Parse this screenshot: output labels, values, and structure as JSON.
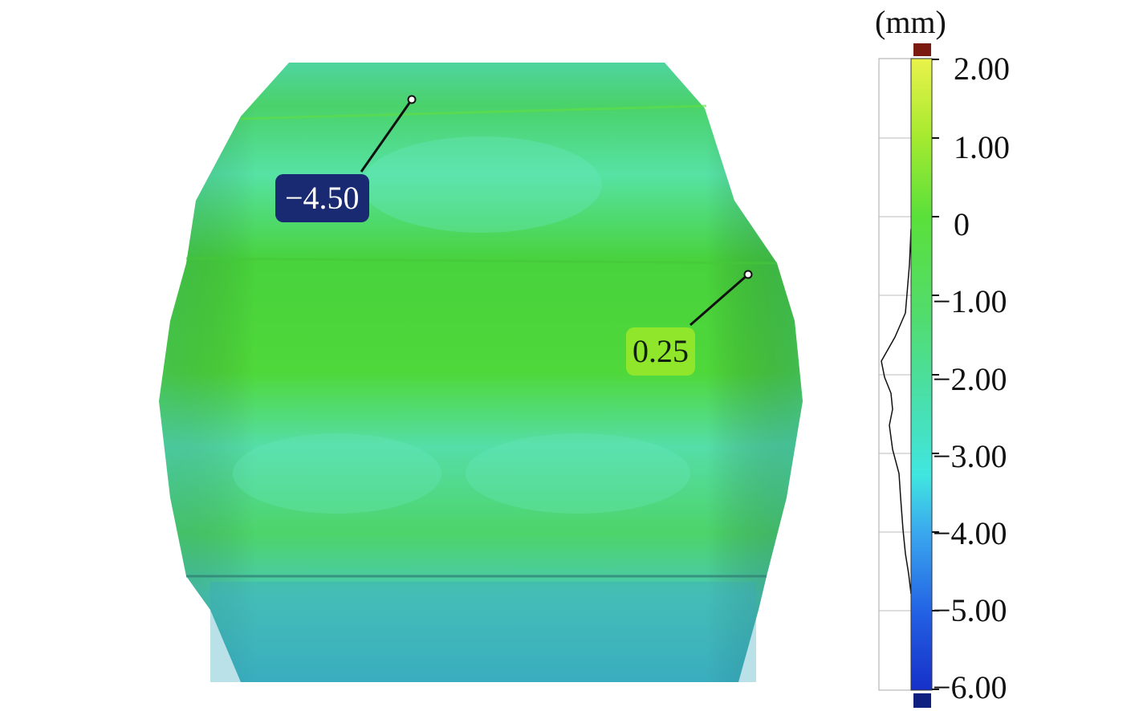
{
  "colorbar": {
    "unit": "(mm)",
    "ticks": [
      "2.00",
      "1.00",
      "0",
      "−1.00",
      "−2.00",
      "−3.00",
      "−4.00",
      "−5.00",
      "−6.00"
    ],
    "colors": {
      "over_range": "#7a1a10",
      "under_range": "#102080",
      "gradient_top": "#e8f040",
      "gradient_mid": "#5ae040",
      "gradient_low": "#40e0d0",
      "gradient_bottom": "#1a3ad8"
    }
  },
  "callouts": [
    {
      "label": "−4.50"
    },
    {
      "label": "0.25"
    }
  ]
}
